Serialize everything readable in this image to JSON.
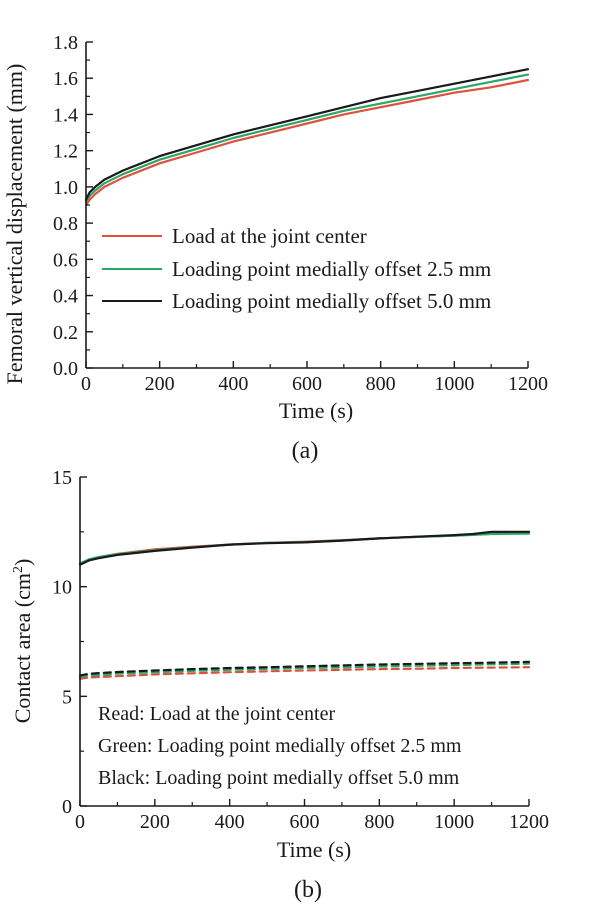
{
  "chart_data": [
    {
      "type": "line",
      "panel_label": "(a)",
      "xlabel": "Time (s)",
      "ylabel": "Femoral vertical displacement (mm)",
      "xlim": [
        0,
        1200
      ],
      "ylim": [
        0,
        1.8
      ],
      "x_ticks": [
        "0",
        "200",
        "400",
        "600",
        "800",
        "1000",
        "1200"
      ],
      "y_ticks": [
        "0.0",
        "0.2",
        "0.4",
        "0.6",
        "0.8",
        "1.0",
        "1.2",
        "1.4",
        "1.6",
        "1.8"
      ],
      "grid": false,
      "legend_position": "middle",
      "x": [
        0,
        10,
        25,
        50,
        100,
        200,
        300,
        400,
        500,
        600,
        700,
        800,
        900,
        1000,
        1100,
        1200
      ],
      "series": [
        {
          "name": "Load at the joint center",
          "color": "#e0503c",
          "values": [
            0.9,
            0.93,
            0.96,
            1.0,
            1.05,
            1.13,
            1.19,
            1.25,
            1.3,
            1.35,
            1.4,
            1.44,
            1.48,
            1.52,
            1.55,
            1.59
          ]
        },
        {
          "name": "Loading point medially offset 2.5 mm",
          "color": "#2aa86a",
          "values": [
            0.92,
            0.95,
            0.98,
            1.02,
            1.07,
            1.15,
            1.21,
            1.27,
            1.32,
            1.37,
            1.42,
            1.46,
            1.5,
            1.54,
            1.58,
            1.62
          ]
        },
        {
          "name": "Loading point medially offset 5.0 mm",
          "color": "#1a1a1a",
          "values": [
            0.93,
            0.97,
            1.0,
            1.04,
            1.09,
            1.17,
            1.23,
            1.29,
            1.34,
            1.39,
            1.44,
            1.49,
            1.53,
            1.57,
            1.61,
            1.65
          ]
        }
      ]
    },
    {
      "type": "line",
      "panel_label": "(b)",
      "xlabel": "Time (s)",
      "ylabel_main": "Contact area (cm",
      "ylabel_sup": "2",
      "ylabel_end": ")",
      "xlim": [
        0,
        1200
      ],
      "ylim": [
        0,
        15
      ],
      "x_ticks": [
        "0",
        "200",
        "400",
        "600",
        "800",
        "1000",
        "1200"
      ],
      "y_ticks": [
        "0",
        "5",
        "10",
        "15"
      ],
      "grid": false,
      "legend_position": "bottom-right",
      "notes": [
        "Read: Load at the joint center",
        "Green: Loading point medially offset 2.5 mm",
        "Black: Loading point medially offset 5.0 mm"
      ],
      "x": [
        0,
        25,
        50,
        100,
        200,
        300,
        400,
        500,
        600,
        700,
        800,
        900,
        1000,
        1050,
        1100,
        1200
      ],
      "series": [
        {
          "color": "#e0503c",
          "style": "solid",
          "values": [
            11.05,
            11.25,
            11.35,
            11.5,
            11.7,
            11.82,
            11.92,
            12.0,
            12.05,
            12.12,
            12.2,
            12.27,
            12.33,
            12.37,
            12.42,
            12.45
          ]
        },
        {
          "color": "#2aa86a",
          "style": "solid",
          "values": [
            11.05,
            11.25,
            11.35,
            11.48,
            11.66,
            11.8,
            11.92,
            12.0,
            12.03,
            12.1,
            12.2,
            12.27,
            12.33,
            12.36,
            12.4,
            12.42
          ]
        },
        {
          "color": "#1a1a1a",
          "style": "solid",
          "values": [
            11.0,
            11.2,
            11.3,
            11.45,
            11.63,
            11.78,
            11.92,
            11.98,
            12.02,
            12.1,
            12.2,
            12.28,
            12.35,
            12.4,
            12.5,
            12.5
          ]
        },
        {
          "color": "#e0503c",
          "style": "dashed",
          "values": [
            5.8,
            5.86,
            5.88,
            5.92,
            6.0,
            6.05,
            6.1,
            6.14,
            6.18,
            6.21,
            6.24,
            6.26,
            6.29,
            6.3,
            6.31,
            6.33
          ]
        },
        {
          "color": "#2aa86a",
          "style": "dashed",
          "values": [
            5.88,
            5.95,
            5.97,
            6.03,
            6.1,
            6.16,
            6.21,
            6.25,
            6.29,
            6.32,
            6.36,
            6.39,
            6.42,
            6.44,
            6.46,
            6.49
          ]
        },
        {
          "color": "#1a1a1a",
          "style": "dashed",
          "values": [
            5.95,
            6.03,
            6.06,
            6.11,
            6.18,
            6.24,
            6.29,
            6.33,
            6.37,
            6.41,
            6.45,
            6.48,
            6.51,
            6.52,
            6.54,
            6.57
          ]
        }
      ]
    }
  ]
}
